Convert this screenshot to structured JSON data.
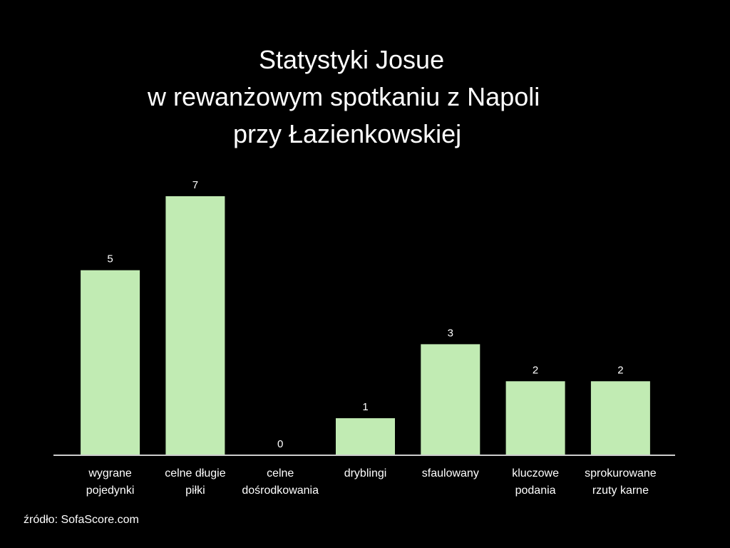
{
  "title_lines": [
    "Statystyki Josue",
    "w rewanżowym spotkaniu z Napoli",
    "przy Łazienkowskiej"
  ],
  "source": "źródło: SofaScore.com",
  "colors": {
    "background": "#000000",
    "bar": "#c1ebb3",
    "axis": "#cccccc",
    "text": "#ffffff"
  },
  "chart_data": {
    "type": "bar",
    "title": "Statystyki Josue w rewanżowym spotkaniu z Napoli przy Łazienkowskiej",
    "categories": [
      [
        "wygrane",
        "pojedynki"
      ],
      [
        "celne długie",
        "piłki"
      ],
      [
        "celne",
        "dośrodkowania"
      ],
      [
        "dryblingi"
      ],
      [
        "sfaulowany"
      ],
      [
        "kluczowe",
        "podania"
      ],
      [
        "sprokurowane",
        "rzuty karne"
      ]
    ],
    "values": [
      5,
      7,
      0,
      1,
      3,
      2,
      2
    ],
    "data_labels": [
      "5",
      "7",
      "0",
      "1",
      "3",
      "2",
      "2"
    ],
    "ylim": [
      0,
      7
    ],
    "grid": false,
    "legend": "none"
  }
}
